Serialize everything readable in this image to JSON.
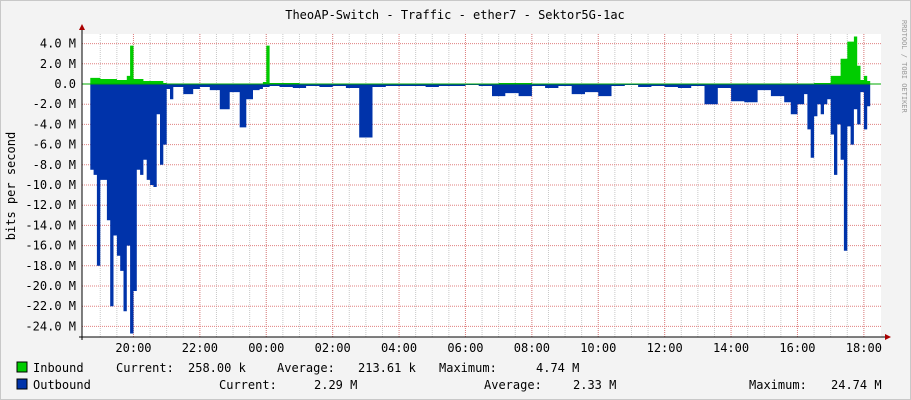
{
  "chart_data": {
    "type": "area",
    "title": "TheoAP-Switch - Traffic - ether7 - Sektor5G-1ac",
    "ylabel": "bits per second",
    "watermark": "RRDTOOL / TOBI OETIKER",
    "ylim": [
      -25,
      5
    ],
    "y_unit": "M",
    "y_ticks": [
      "4.0 M",
      "2.0 M",
      "0.0",
      "-2.0 M",
      "-4.0 M",
      "-6.0 M",
      "-8.0 M",
      "-10.0 M",
      "-12.0 M",
      "-14.0 M",
      "-16.0 M",
      "-18.0 M",
      "-20.0 M",
      "-22.0 M",
      "-24.0 M"
    ],
    "x_ticks": [
      "20:00",
      "22:00",
      "00:00",
      "02:00",
      "04:00",
      "06:00",
      "08:00",
      "10:00",
      "12:00",
      "14:00",
      "16:00",
      "18:00"
    ],
    "grid": true,
    "colors": {
      "inbound": "#00cc00",
      "outbound": "#0033aa",
      "zero_line": "#00aa00",
      "grid_major": "#e08080",
      "grid_minor": "#c8c8c8"
    },
    "series": [
      {
        "name": "Inbound",
        "x_hours": [
          18.7,
          19.0,
          19.5,
          19.8,
          19.9,
          20.0,
          20.3,
          20.9,
          21.0,
          21.5,
          22.0,
          23.0,
          23.9,
          24.0,
          24.1,
          25.0,
          26.0,
          28.0,
          30.0,
          31.0,
          32.0,
          34.0,
          36.0,
          38.0,
          40.0,
          40.5,
          41.0,
          41.3,
          41.5,
          41.7,
          41.8,
          41.9,
          42.0,
          42.1
        ],
        "values": [
          0.6,
          0.5,
          0.4,
          0.8,
          3.8,
          0.5,
          0.3,
          0.1,
          0.05,
          0.05,
          0.05,
          0.05,
          0.2,
          3.8,
          0.1,
          0.05,
          0.05,
          0.05,
          0.05,
          0.1,
          0.05,
          0.05,
          0.05,
          0.05,
          0.05,
          0.1,
          0.8,
          2.5,
          4.2,
          4.7,
          1.8,
          0.4,
          0.8,
          0.3
        ]
      },
      {
        "name": "Outbound",
        "x_hours": [
          18.7,
          18.8,
          18.9,
          19.0,
          19.2,
          19.3,
          19.4,
          19.5,
          19.6,
          19.7,
          19.8,
          19.9,
          20.0,
          20.1,
          20.2,
          20.3,
          20.4,
          20.5,
          20.6,
          20.7,
          20.8,
          20.9,
          21.0,
          21.1,
          21.2,
          21.5,
          21.8,
          22.0,
          22.3,
          22.6,
          22.9,
          23.2,
          23.4,
          23.6,
          23.8,
          23.9,
          24.1,
          24.4,
          24.8,
          25.2,
          25.6,
          26.0,
          26.4,
          26.8,
          27.2,
          27.6,
          28.0,
          28.4,
          28.8,
          29.2,
          29.6,
          30.0,
          30.4,
          30.8,
          31.2,
          31.6,
          32.0,
          32.4,
          32.8,
          33.2,
          33.6,
          34.0,
          34.4,
          34.8,
          35.2,
          35.6,
          36.0,
          36.4,
          36.8,
          37.2,
          37.6,
          38.0,
          38.4,
          38.8,
          39.2,
          39.6,
          39.8,
          40.0,
          40.2,
          40.3,
          40.4,
          40.5,
          40.6,
          40.7,
          40.8,
          40.9,
          41.0,
          41.1,
          41.2,
          41.3,
          41.4,
          41.5,
          41.6,
          41.7,
          41.8,
          41.9,
          42.0,
          42.1
        ],
        "values": [
          -8.5,
          -9.0,
          -18.0,
          -9.5,
          -13.5,
          -22.0,
          -15.0,
          -17.0,
          -18.5,
          -22.5,
          -16.0,
          -24.7,
          -20.5,
          -8.5,
          -9.0,
          -7.5,
          -9.5,
          -10.0,
          -10.2,
          -3.0,
          -8.0,
          -6.0,
          -0.5,
          -1.5,
          -0.3,
          -1.0,
          -0.5,
          -0.3,
          -0.6,
          -2.5,
          -0.8,
          -4.3,
          -1.5,
          -0.6,
          -0.5,
          -0.3,
          -0.2,
          -0.3,
          -0.4,
          -0.2,
          -0.3,
          -0.2,
          -0.4,
          -5.3,
          -0.3,
          -0.2,
          -0.2,
          -0.2,
          -0.3,
          -0.2,
          -0.2,
          -0.1,
          -0.2,
          -1.2,
          -0.9,
          -1.2,
          -0.2,
          -0.4,
          -0.2,
          -1.0,
          -0.8,
          -1.2,
          -0.2,
          -0.1,
          -0.3,
          -0.2,
          -0.3,
          -0.4,
          -0.2,
          -2.0,
          -0.4,
          -1.7,
          -1.8,
          -0.6,
          -1.2,
          -1.8,
          -3.0,
          -2.0,
          -1.0,
          -4.5,
          -7.3,
          -3.2,
          -2.0,
          -3.0,
          -2.0,
          -1.5,
          -5.0,
          -9.0,
          -4.0,
          -7.5,
          -16.5,
          -4.2,
          -6.0,
          -2.5,
          -4.0,
          -0.8,
          -4.5,
          -2.2
        ]
      }
    ]
  },
  "legend": {
    "inbound": {
      "name": "Inbound",
      "current_label": "Current:",
      "current": "258.00 k",
      "average_label": "Average:",
      "average": "213.61 k",
      "maximum_label": "Maximum:",
      "maximum": "4.74 M"
    },
    "outbound": {
      "name": "Outbound",
      "current_label": "Current:",
      "current": "2.29 M",
      "average_label": "Average:",
      "average": "2.33 M",
      "maximum_label": "Maximum:",
      "maximum": "24.74 M"
    }
  }
}
